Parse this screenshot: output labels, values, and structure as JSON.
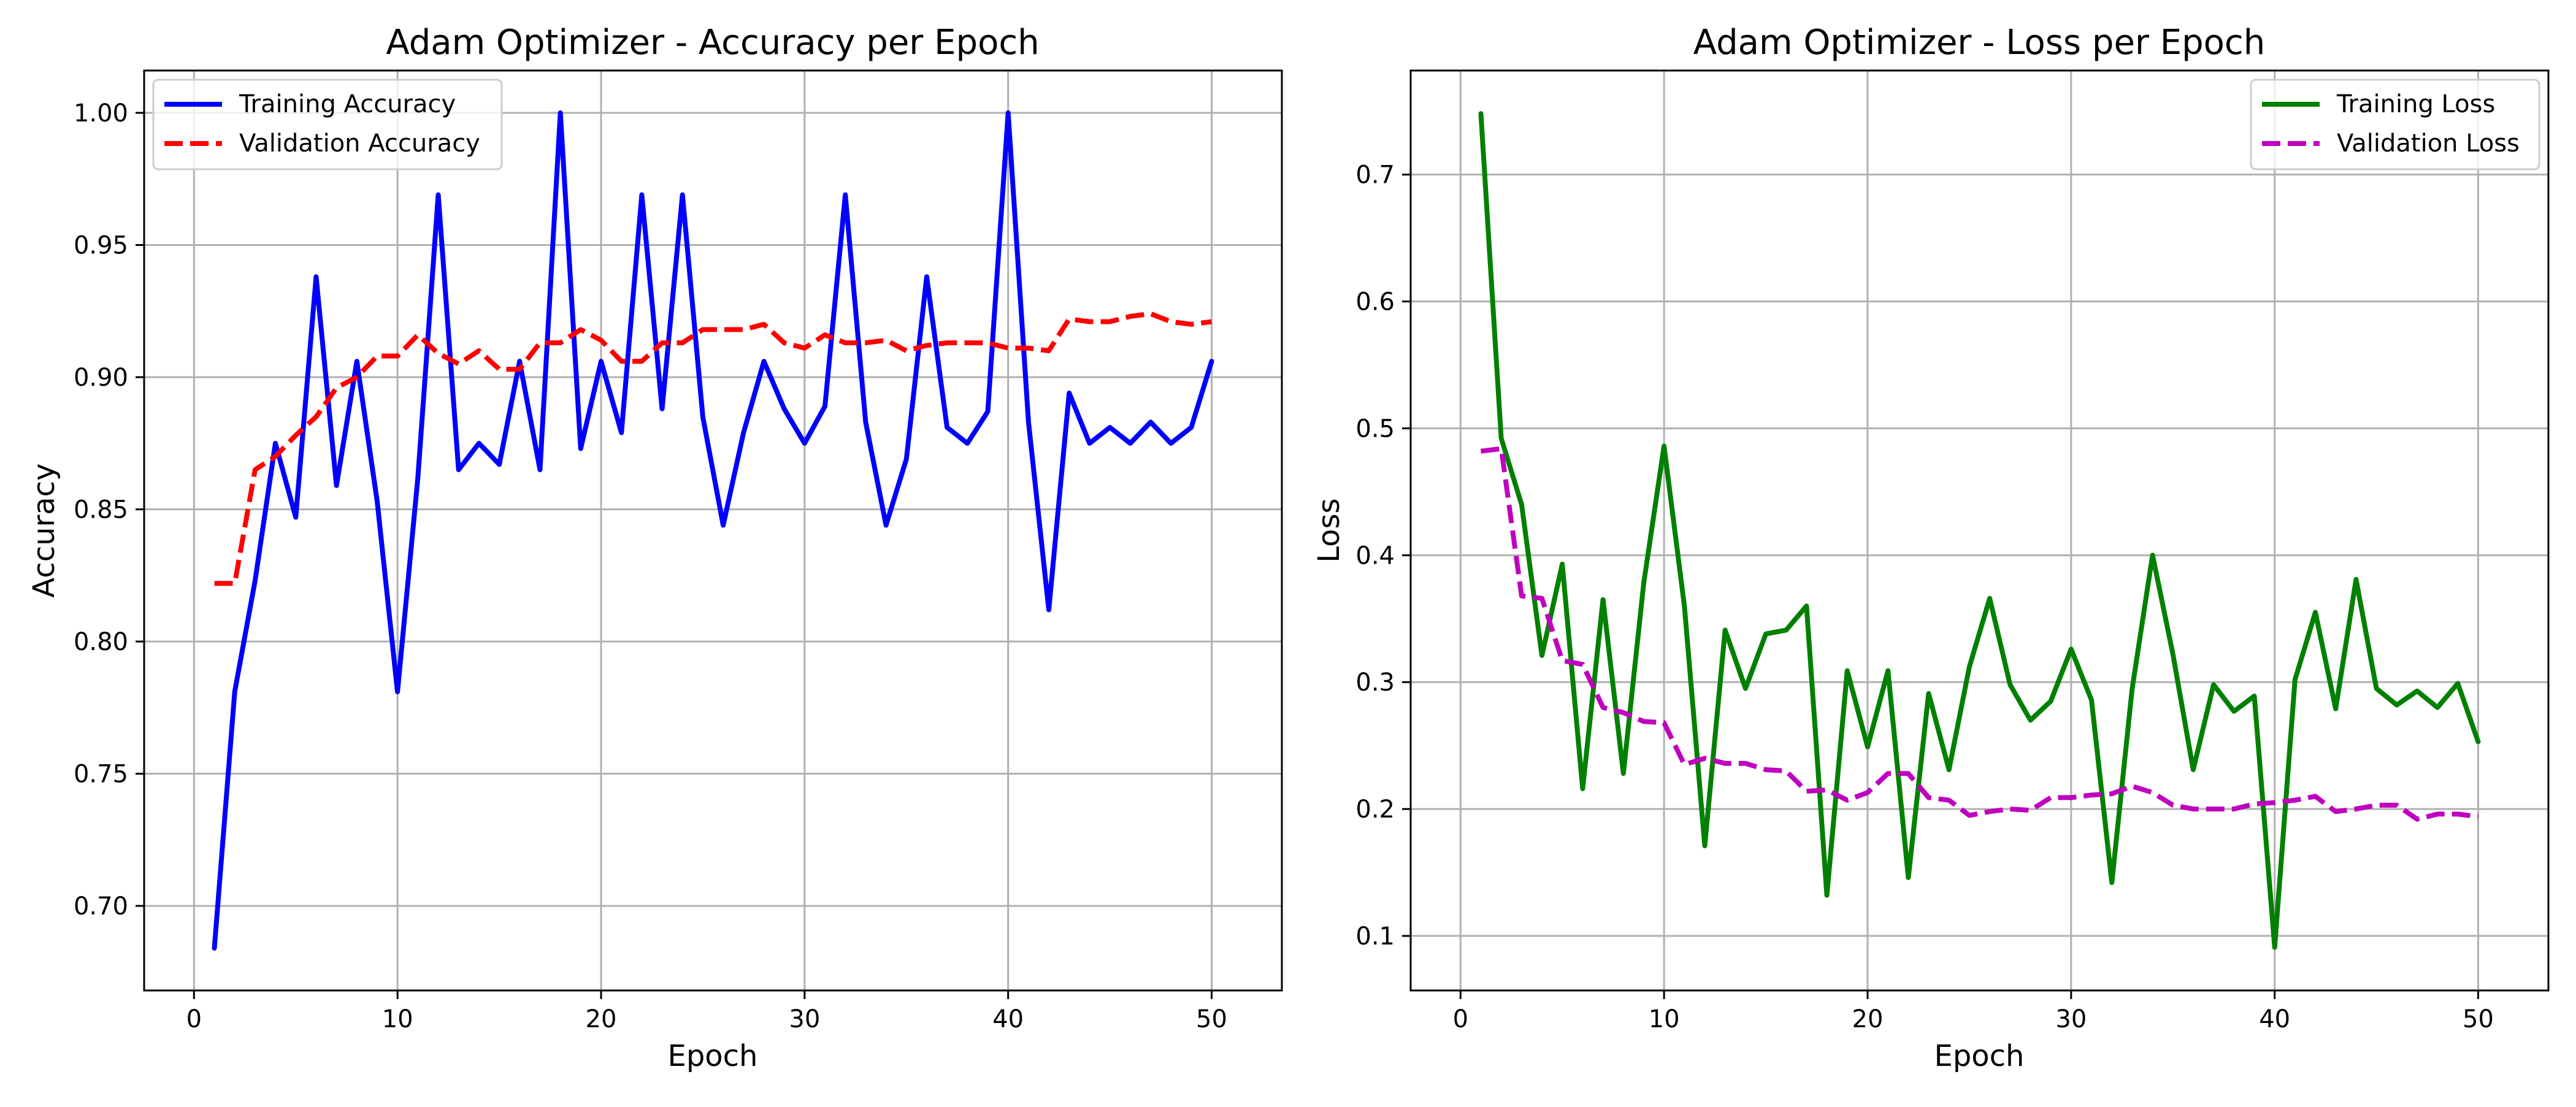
{
  "chart_data": [
    {
      "type": "line",
      "title": "Adam Optimizer - Accuracy per Epoch",
      "xlabel": "Epoch",
      "ylabel": "Accuracy",
      "xlim": [
        -2.45,
        53.45
      ],
      "ylim": [
        0.668,
        1.016
      ],
      "xticks": [
        0,
        10,
        20,
        30,
        40,
        50
      ],
      "yticks": [
        0.7,
        0.75,
        0.8,
        0.85,
        0.9,
        0.95,
        1.0
      ],
      "ytick_labels": [
        "0.70",
        "0.75",
        "0.80",
        "0.85",
        "0.90",
        "0.95",
        "1.00"
      ],
      "grid": true,
      "legend_position": "upper-left",
      "x": [
        1,
        2,
        3,
        4,
        5,
        6,
        7,
        8,
        9,
        10,
        11,
        12,
        13,
        14,
        15,
        16,
        17,
        18,
        19,
        20,
        21,
        22,
        23,
        24,
        25,
        26,
        27,
        28,
        29,
        30,
        31,
        32,
        33,
        34,
        35,
        36,
        37,
        38,
        39,
        40,
        41,
        42,
        43,
        44,
        45,
        46,
        47,
        48,
        49,
        50
      ],
      "series": [
        {
          "name": "Training Accuracy",
          "color": "#0000ff",
          "dash": "solid",
          "values": [
            0.684,
            0.781,
            0.823,
            0.875,
            0.847,
            0.938,
            0.859,
            0.906,
            0.853,
            0.781,
            0.862,
            0.969,
            0.865,
            0.875,
            0.867,
            0.906,
            0.865,
            1.0,
            0.873,
            0.906,
            0.879,
            0.969,
            0.888,
            0.969,
            0.885,
            0.844,
            0.879,
            0.906,
            0.888,
            0.875,
            0.889,
            0.969,
            0.883,
            0.844,
            0.869,
            0.938,
            0.881,
            0.875,
            0.887,
            1.0,
            0.883,
            0.812,
            0.894,
            0.875,
            0.881,
            0.875,
            0.883,
            0.875,
            0.881,
            0.906
          ]
        },
        {
          "name": "Validation Accuracy",
          "color": "#ff0000",
          "dash": "dashed",
          "values": [
            0.822,
            0.822,
            0.865,
            0.87,
            0.878,
            0.885,
            0.896,
            0.9,
            0.908,
            0.908,
            0.916,
            0.909,
            0.905,
            0.91,
            0.903,
            0.903,
            0.913,
            0.913,
            0.918,
            0.914,
            0.906,
            0.906,
            0.913,
            0.913,
            0.918,
            0.918,
            0.918,
            0.92,
            0.913,
            0.911,
            0.916,
            0.913,
            0.913,
            0.914,
            0.91,
            0.912,
            0.913,
            0.913,
            0.913,
            0.911,
            0.911,
            0.91,
            0.922,
            0.921,
            0.921,
            0.923,
            0.924,
            0.921,
            0.92,
            0.921
          ]
        }
      ]
    },
    {
      "type": "line",
      "title": "Adam Optimizer - Loss per Epoch",
      "xlabel": "Epoch",
      "ylabel": "Loss",
      "xlim": [
        -2.45,
        53.45
      ],
      "ylim": [
        0.057,
        0.782
      ],
      "xticks": [
        0,
        10,
        20,
        30,
        40,
        50
      ],
      "yticks": [
        0.1,
        0.2,
        0.3,
        0.4,
        0.5,
        0.6,
        0.7
      ],
      "ytick_labels": [
        "0.1",
        "0.2",
        "0.3",
        "0.4",
        "0.5",
        "0.6",
        "0.7"
      ],
      "grid": true,
      "legend_position": "upper-right",
      "x": [
        1,
        2,
        3,
        4,
        5,
        6,
        7,
        8,
        9,
        10,
        11,
        12,
        13,
        14,
        15,
        16,
        17,
        18,
        19,
        20,
        21,
        22,
        23,
        24,
        25,
        26,
        27,
        28,
        29,
        30,
        31,
        32,
        33,
        34,
        35,
        36,
        37,
        38,
        39,
        40,
        41,
        42,
        43,
        44,
        45,
        46,
        47,
        48,
        49,
        50
      ],
      "series": [
        {
          "name": "Training Loss",
          "color": "#008000",
          "dash": "solid",
          "values": [
            0.748,
            0.492,
            0.44,
            0.321,
            0.393,
            0.216,
            0.365,
            0.228,
            0.378,
            0.486,
            0.36,
            0.171,
            0.341,
            0.295,
            0.338,
            0.341,
            0.36,
            0.132,
            0.309,
            0.249,
            0.309,
            0.146,
            0.291,
            0.231,
            0.312,
            0.366,
            0.298,
            0.27,
            0.285,
            0.326,
            0.286,
            0.142,
            0.295,
            0.4,
            0.322,
            0.231,
            0.298,
            0.277,
            0.289,
            0.091,
            0.302,
            0.355,
            0.279,
            0.381,
            0.295,
            0.282,
            0.293,
            0.28,
            0.299,
            0.253
          ]
        },
        {
          "name": "Validation Loss",
          "color": "#bf00bf",
          "dash": "dashed",
          "values": [
            0.482,
            0.484,
            0.368,
            0.366,
            0.317,
            0.314,
            0.28,
            0.276,
            0.269,
            0.268,
            0.235,
            0.24,
            0.236,
            0.236,
            0.231,
            0.23,
            0.214,
            0.215,
            0.207,
            0.213,
            0.228,
            0.228,
            0.209,
            0.207,
            0.195,
            0.198,
            0.2,
            0.199,
            0.209,
            0.209,
            0.211,
            0.212,
            0.218,
            0.213,
            0.203,
            0.2,
            0.2,
            0.2,
            0.204,
            0.205,
            0.207,
            0.21,
            0.198,
            0.2,
            0.203,
            0.203,
            0.192,
            0.196,
            0.196,
            0.194
          ]
        }
      ]
    }
  ]
}
